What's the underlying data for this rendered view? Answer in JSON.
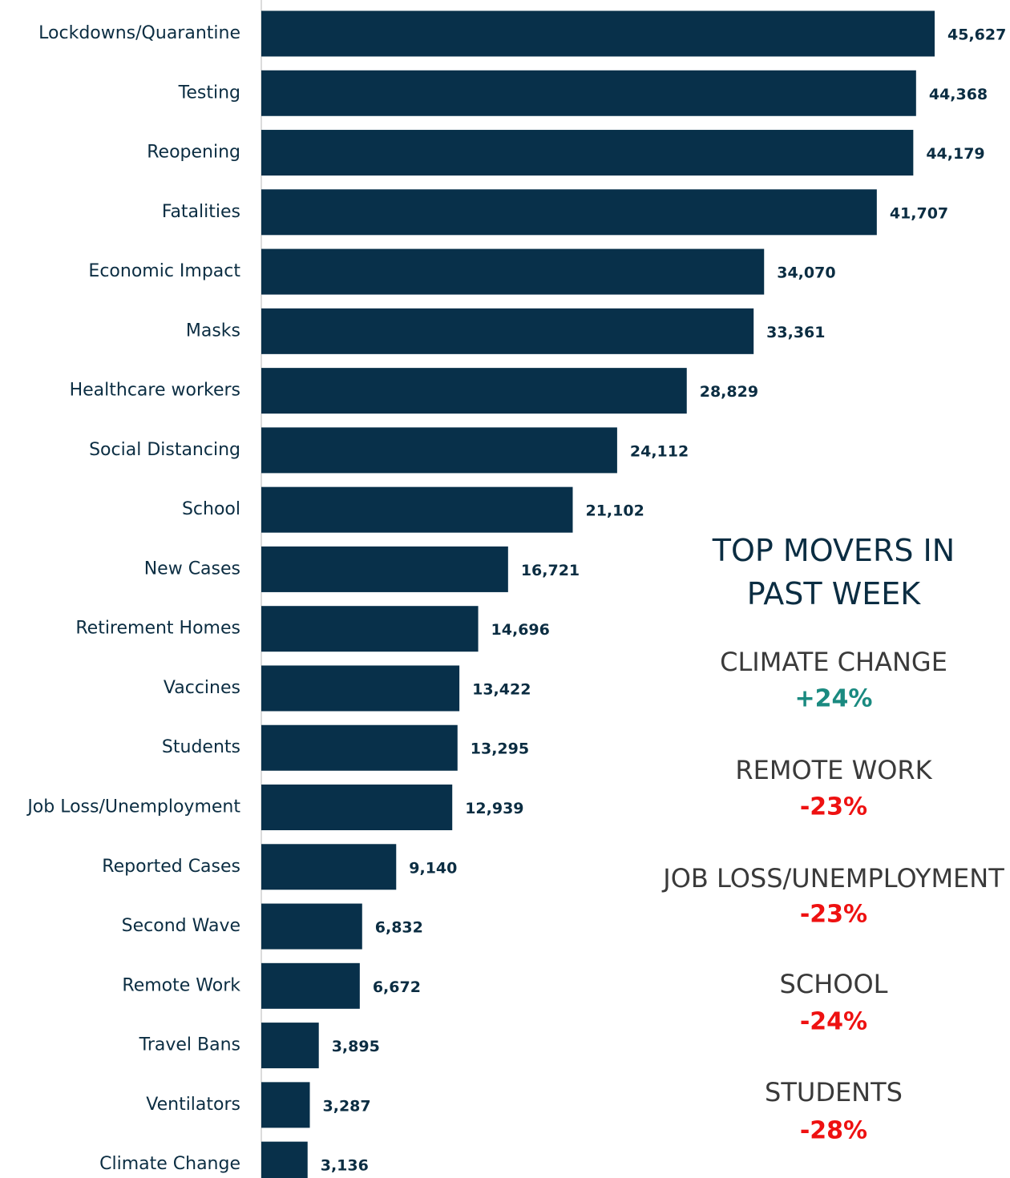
{
  "chart_data": {
    "type": "bar",
    "orientation": "horizontal",
    "color": "#08304a",
    "categories": [
      "Lockdowns/Quarantine",
      "Testing",
      "Reopening",
      "Fatalities",
      "Economic Impact",
      "Masks",
      "Healthcare workers",
      "Social Distancing",
      "School",
      "New Cases",
      "Retirement Homes",
      "Vaccines",
      "Students",
      "Job Loss/Unemployment",
      "Reported Cases",
      "Second Wave",
      "Remote Work",
      "Travel Bans",
      "Ventilators",
      "Climate Change"
    ],
    "values": [
      45627,
      44368,
      44179,
      41707,
      34070,
      33361,
      28829,
      24112,
      21102,
      16721,
      14696,
      13422,
      13295,
      12939,
      9140,
      6832,
      6672,
      3895,
      3287,
      3136
    ],
    "value_labels": [
      "45,627",
      "44,368",
      "44,179",
      "41,707",
      "34,070",
      "33,361",
      "28,829",
      "24,112",
      "21,102",
      "16,721",
      "14,696",
      "13,422",
      "13,295",
      "12,939",
      "9,140",
      "6,832",
      "6,672",
      "3,895",
      "3,287",
      "3,136"
    ]
  },
  "movers": {
    "title": "TOP MOVERS IN PAST WEEK",
    "items": [
      {
        "name": "CLIMATE CHANGE",
        "change": "+24%",
        "color": "#1a8a80"
      },
      {
        "name": "REMOTE WORK",
        "change": "-23%",
        "color": "#ee1111"
      },
      {
        "name": "JOB LOSS/UNEMPLOYMENT",
        "change": "-23%",
        "color": "#ee1111"
      },
      {
        "name": "SCHOOL",
        "change": "-24%",
        "color": "#ee1111"
      },
      {
        "name": "STUDENTS",
        "change": "-28%",
        "color": "#ee1111"
      }
    ]
  }
}
